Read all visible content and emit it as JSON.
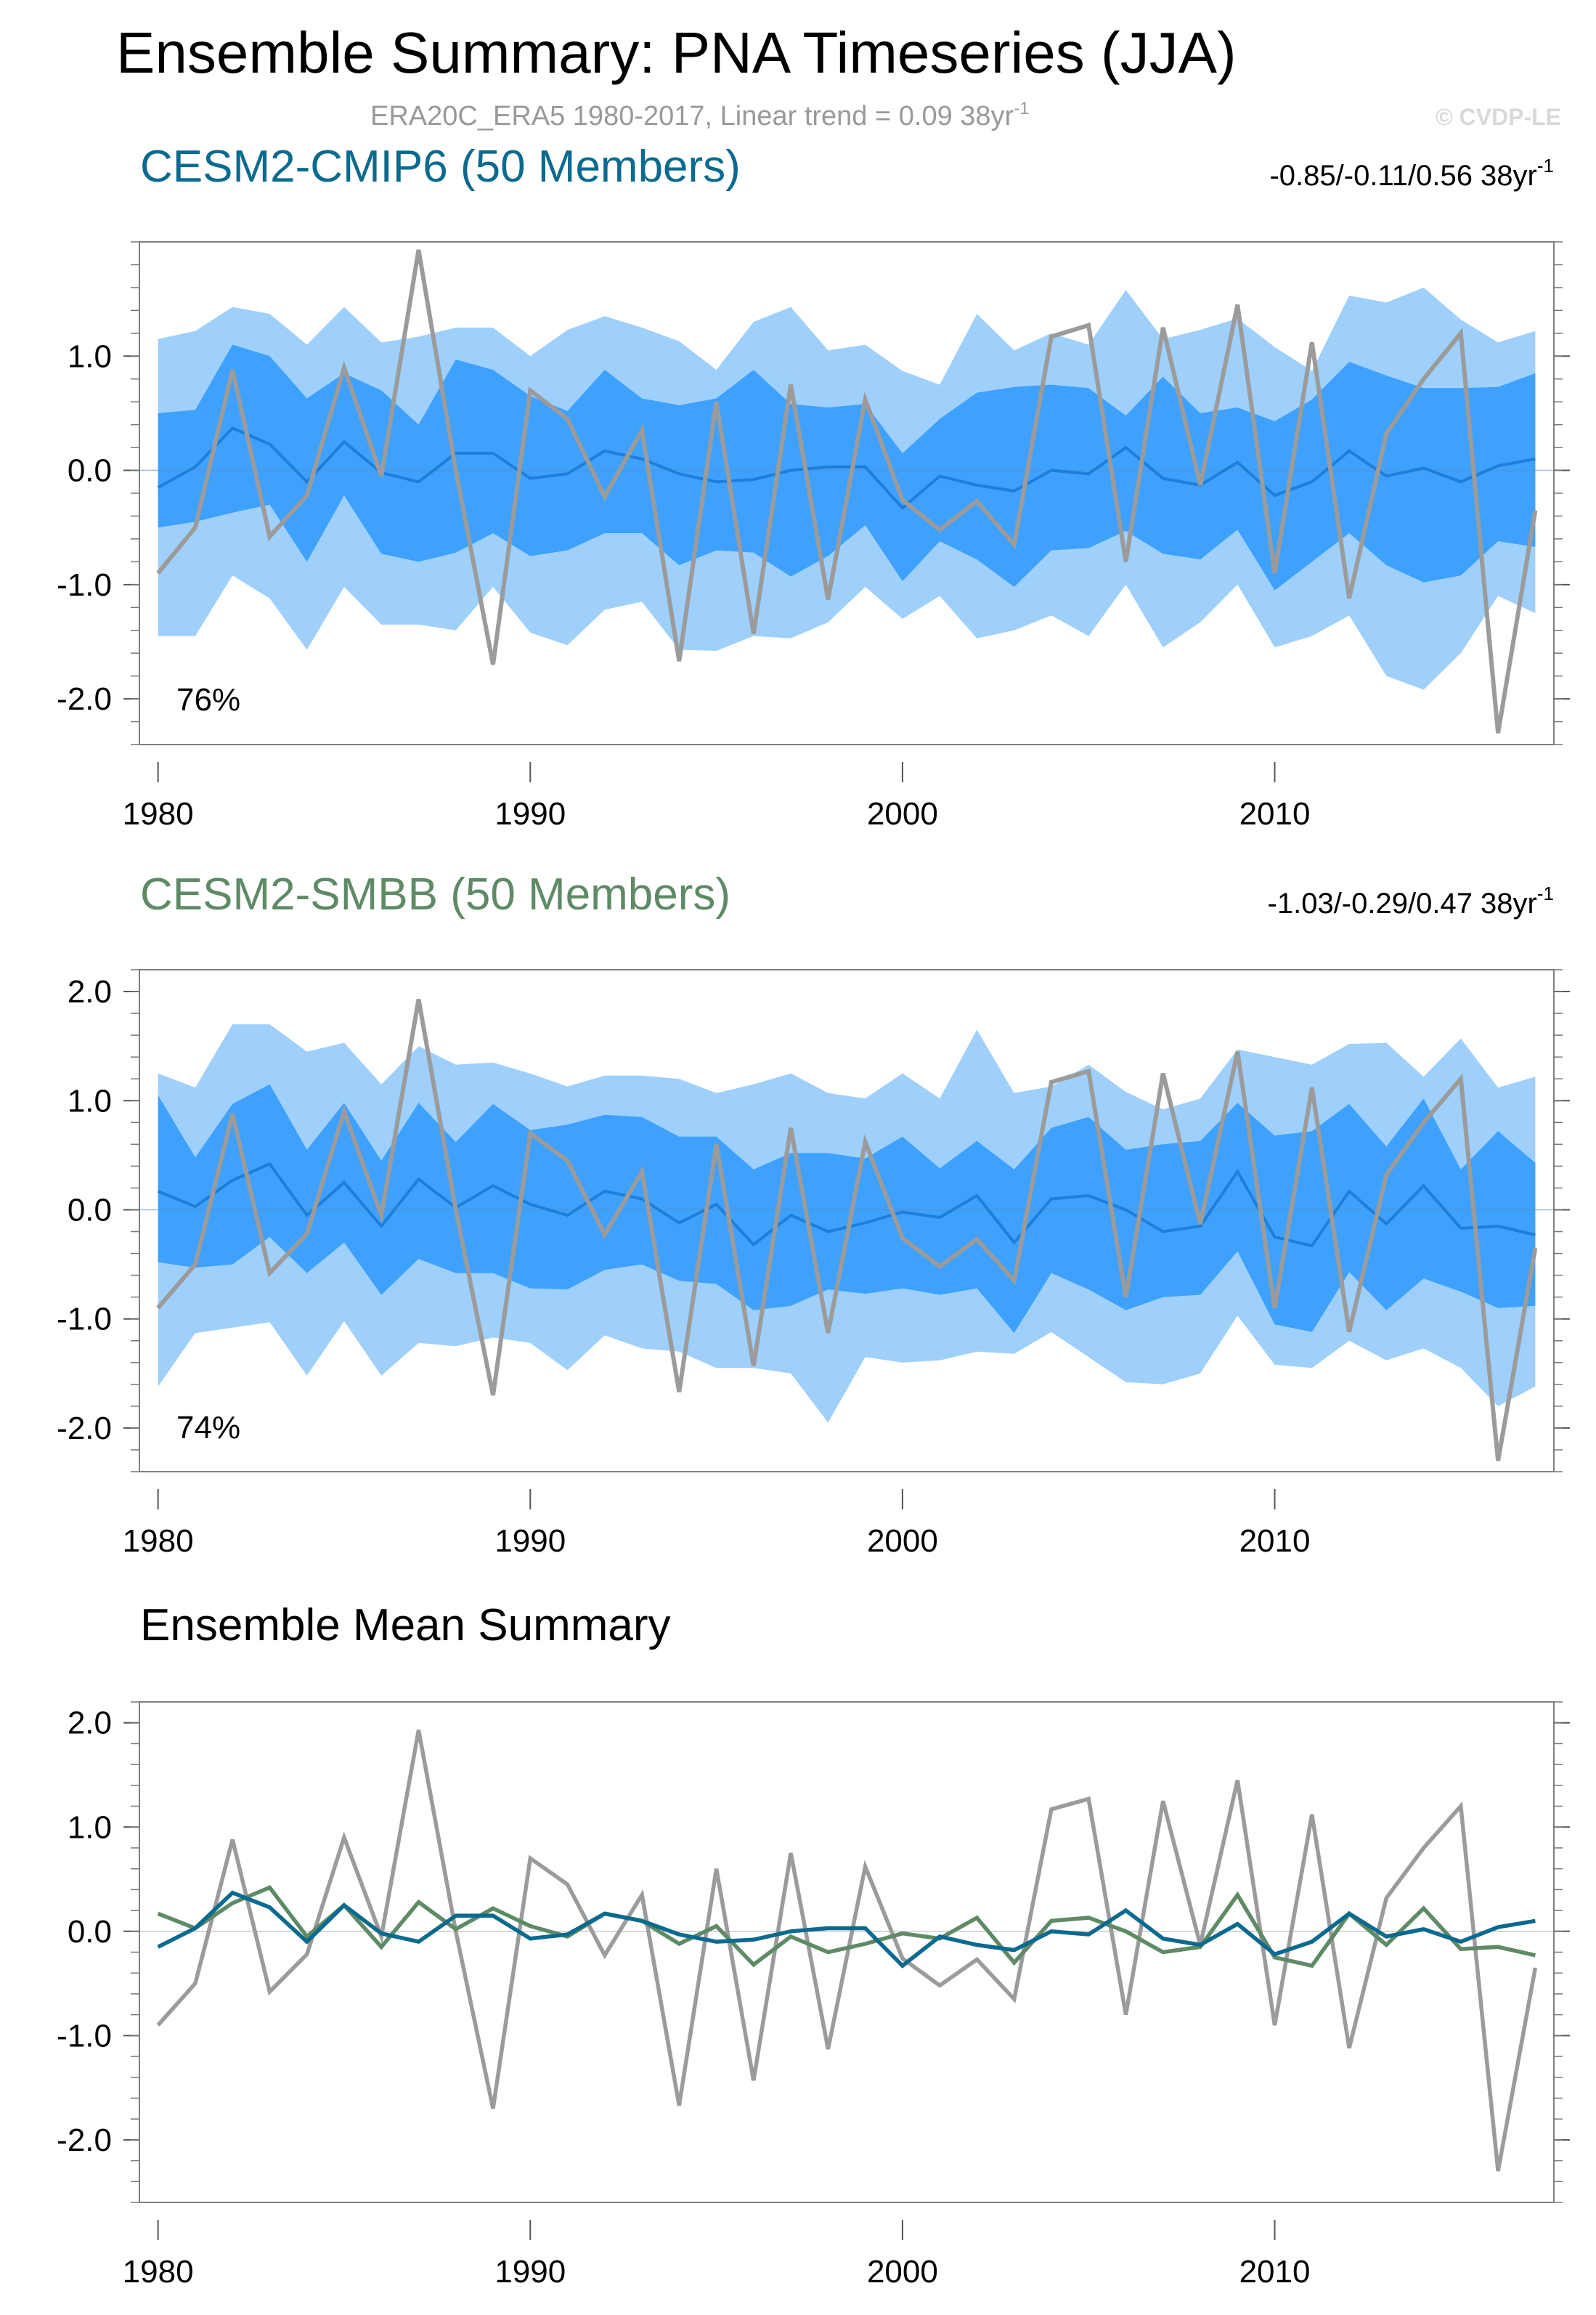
{
  "page": {
    "title": "Ensemble Summary: PNA Timeseries (JJA)",
    "subtitle": "ERA20C_ERA5 1980-2017, Linear trend = 0.09 38yr",
    "subtitle_sup": "-1",
    "copyright": "© CVDP-LE"
  },
  "colors": {
    "obs": "#9b9b9b",
    "outer_band": "#9fd0fb",
    "inner_band": "#3da1fd",
    "cesm2_cmip6_line": "#0b6a8e",
    "cesm2_cmip6_band_mean": "#1d7fd8",
    "cesm2_smbb_line": "#5e8a66",
    "zero_line": "#c8c8c8",
    "frame": "#808080"
  },
  "chart_data": [
    {
      "type": "line",
      "name": "CESM2-CMIP6 (50 Members)",
      "title": "CESM2-CMIP6 (50 Members)",
      "trend_text": "-0.85/-0.11/0.56 38yr",
      "trend_sup": "-1",
      "percent_label": "76%",
      "title_color": "#0b6a8e",
      "x": [
        1980,
        1981,
        1982,
        1983,
        1984,
        1985,
        1986,
        1987,
        1988,
        1989,
        1990,
        1991,
        1992,
        1993,
        1994,
        1995,
        1996,
        1997,
        1998,
        1999,
        2000,
        2001,
        2002,
        2003,
        2004,
        2005,
        2006,
        2007,
        2008,
        2009,
        2010,
        2011,
        2012,
        2013,
        2014,
        2015,
        2016,
        2017
      ],
      "ylim": [
        -2.4,
        2.0
      ],
      "yticks": [
        -2.0,
        -1.0,
        0.0,
        1.0
      ],
      "yticklabels": [
        "-2.0",
        "-1.0",
        "0.0",
        "1.0"
      ],
      "xticks": [
        1980,
        1990,
        2000,
        2010
      ],
      "xticklabels": [
        "1980",
        "1990",
        "2000",
        "2010"
      ],
      "obs": [
        -0.9,
        -0.5,
        0.88,
        -0.58,
        -0.22,
        0.9,
        -0.05,
        1.93,
        0.0,
        -1.7,
        0.7,
        0.45,
        -0.23,
        0.35,
        -1.67,
        0.6,
        -1.43,
        0.75,
        -1.13,
        0.62,
        -0.26,
        -0.52,
        -0.27,
        -0.65,
        1.17,
        1.27,
        -0.8,
        1.25,
        -0.13,
        1.45,
        -0.9,
        1.12,
        -1.12,
        0.32,
        0.8,
        1.2,
        -2.3,
        -0.35
      ],
      "ens_mean": [
        -0.15,
        0.03,
        0.37,
        0.23,
        -0.1,
        0.25,
        -0.02,
        -0.1,
        0.15,
        0.15,
        -0.07,
        -0.03,
        0.17,
        0.1,
        -0.03,
        -0.1,
        -0.08,
        0.0,
        0.03,
        0.03,
        -0.33,
        -0.05,
        -0.13,
        -0.18,
        0.0,
        -0.03,
        0.2,
        -0.07,
        -0.13,
        0.07,
        -0.22,
        -0.1,
        0.17,
        -0.05,
        0.02,
        -0.1,
        0.04,
        0.1
      ],
      "p10": [
        -1.45,
        -1.45,
        -0.92,
        -1.12,
        -1.57,
        -1.02,
        -1.35,
        -1.35,
        -1.4,
        -1.02,
        -1.42,
        -1.53,
        -1.22,
        -1.15,
        -1.57,
        -1.58,
        -1.45,
        -1.47,
        -1.33,
        -1.02,
        -1.3,
        -1.1,
        -1.47,
        -1.4,
        -1.27,
        -1.45,
        -1.0,
        -1.55,
        -1.33,
        -1.0,
        -1.55,
        -1.45,
        -1.27,
        -1.8,
        -1.92,
        -1.6,
        -1.1,
        -1.25
      ],
      "p25": [
        -0.5,
        -0.45,
        -0.37,
        -0.3,
        -0.8,
        -0.22,
        -0.73,
        -0.8,
        -0.72,
        -0.55,
        -0.75,
        -0.7,
        -0.55,
        -0.55,
        -0.83,
        -0.7,
        -0.72,
        -0.93,
        -0.75,
        -0.48,
        -0.97,
        -0.62,
        -0.78,
        -1.02,
        -0.7,
        -0.68,
        -0.53,
        -0.73,
        -0.78,
        -0.52,
        -1.05,
        -0.8,
        -0.55,
        -0.83,
        -0.98,
        -0.92,
        -0.62,
        -0.67
      ],
      "p75": [
        0.5,
        0.53,
        1.1,
        1.0,
        0.63,
        0.85,
        0.7,
        0.4,
        0.97,
        0.88,
        0.65,
        0.52,
        0.88,
        0.63,
        0.57,
        0.63,
        0.88,
        0.58,
        0.55,
        0.58,
        0.15,
        0.45,
        0.68,
        0.73,
        0.75,
        0.72,
        0.48,
        0.82,
        0.5,
        0.55,
        0.43,
        0.62,
        0.95,
        0.83,
        0.72,
        0.72,
        0.73,
        0.85
      ],
      "p90": [
        1.15,
        1.22,
        1.43,
        1.37,
        1.1,
        1.43,
        1.12,
        1.17,
        1.25,
        1.25,
        1.0,
        1.23,
        1.35,
        1.25,
        1.13,
        0.88,
        1.3,
        1.43,
        1.05,
        1.1,
        0.87,
        0.75,
        1.37,
        1.05,
        1.2,
        1.1,
        1.58,
        1.15,
        1.23,
        1.33,
        1.08,
        0.87,
        1.53,
        1.47,
        1.6,
        1.32,
        1.12,
        1.22
      ]
    },
    {
      "type": "line",
      "name": "CESM2-SMBB (50 Members)",
      "title": "CESM2-SMBB (50 Members)",
      "trend_text": "-1.03/-0.29/0.47 38yr",
      "trend_sup": "-1",
      "percent_label": "74%",
      "title_color": "#5e8a66",
      "x": [
        1980,
        1981,
        1982,
        1983,
        1984,
        1985,
        1986,
        1987,
        1988,
        1989,
        1990,
        1991,
        1992,
        1993,
        1994,
        1995,
        1996,
        1997,
        1998,
        1999,
        2000,
        2001,
        2002,
        2003,
        2004,
        2005,
        2006,
        2007,
        2008,
        2009,
        2010,
        2011,
        2012,
        2013,
        2014,
        2015,
        2016,
        2017
      ],
      "ylim": [
        -2.4,
        2.2
      ],
      "yticks": [
        -2.0,
        -1.0,
        0.0,
        1.0,
        2.0
      ],
      "yticklabels": [
        "-2.0",
        "-1.0",
        "0.0",
        "1.0",
        "2.0"
      ],
      "xticks": [
        1980,
        1990,
        2000,
        2010
      ],
      "xticklabels": [
        "1980",
        "1990",
        "2000",
        "2010"
      ],
      "obs": [
        -0.9,
        -0.5,
        0.88,
        -0.58,
        -0.22,
        0.9,
        -0.05,
        1.93,
        0.0,
        -1.7,
        0.7,
        0.45,
        -0.23,
        0.35,
        -1.67,
        0.6,
        -1.43,
        0.75,
        -1.13,
        0.62,
        -0.26,
        -0.52,
        -0.27,
        -0.65,
        1.17,
        1.27,
        -0.8,
        1.25,
        -0.13,
        1.45,
        -0.9,
        1.12,
        -1.12,
        0.32,
        0.8,
        1.2,
        -2.3,
        -0.35
      ],
      "ens_mean": [
        0.17,
        0.03,
        0.27,
        0.42,
        -0.05,
        0.25,
        -0.15,
        0.28,
        0.02,
        0.22,
        0.05,
        -0.05,
        0.17,
        0.1,
        -0.12,
        0.05,
        -0.32,
        -0.05,
        -0.2,
        -0.12,
        -0.02,
        -0.07,
        0.13,
        -0.3,
        0.1,
        0.13,
        0.0,
        -0.2,
        -0.15,
        0.35,
        -0.25,
        -0.33,
        0.17,
        -0.13,
        0.22,
        -0.17,
        -0.15,
        -0.23
      ],
      "p10": [
        -1.62,
        -1.13,
        -1.08,
        -1.03,
        -1.52,
        -1.02,
        -1.52,
        -1.22,
        -1.25,
        -1.17,
        -1.22,
        -1.47,
        -1.15,
        -1.27,
        -1.3,
        -1.45,
        -1.45,
        -1.5,
        -1.95,
        -1.35,
        -1.4,
        -1.38,
        -1.3,
        -1.32,
        -1.12,
        -1.35,
        -1.58,
        -1.6,
        -1.5,
        -0.97,
        -1.42,
        -1.45,
        -1.2,
        -1.38,
        -1.27,
        -1.45,
        -1.8,
        -1.62
      ],
      "p25": [
        -0.48,
        -0.53,
        -0.5,
        -0.25,
        -0.58,
        -0.3,
        -0.78,
        -0.45,
        -0.58,
        -0.58,
        -0.72,
        -0.73,
        -0.55,
        -0.5,
        -0.65,
        -0.68,
        -0.92,
        -0.88,
        -0.73,
        -0.77,
        -0.72,
        -0.78,
        -0.72,
        -1.13,
        -0.58,
        -0.73,
        -0.92,
        -0.8,
        -0.78,
        -0.38,
        -1.05,
        -1.12,
        -0.57,
        -0.92,
        -0.63,
        -0.75,
        -0.9,
        -0.88
      ],
      "p75": [
        1.05,
        0.48,
        0.97,
        1.15,
        0.55,
        0.98,
        0.45,
        0.98,
        0.62,
        0.97,
        0.73,
        0.78,
        0.87,
        0.85,
        0.67,
        0.67,
        0.37,
        0.52,
        0.52,
        0.47,
        0.67,
        0.38,
        0.63,
        0.37,
        0.75,
        0.85,
        0.55,
        0.6,
        0.63,
        0.98,
        0.68,
        0.72,
        0.97,
        0.58,
        1.02,
        0.37,
        0.72,
        0.43
      ],
      "p90": [
        1.25,
        1.12,
        1.7,
        1.7,
        1.45,
        1.53,
        1.15,
        1.5,
        1.33,
        1.35,
        1.25,
        1.13,
        1.23,
        1.23,
        1.2,
        1.07,
        1.15,
        1.25,
        1.07,
        1.02,
        1.25,
        1.02,
        1.65,
        1.07,
        1.13,
        1.33,
        1.08,
        0.92,
        1.02,
        1.47,
        1.4,
        1.33,
        1.52,
        1.53,
        1.22,
        1.57,
        1.12,
        1.22
      ]
    },
    {
      "type": "line",
      "name": "Ensemble Mean Summary",
      "title": "Ensemble Mean Summary",
      "x": [
        1980,
        1981,
        1982,
        1983,
        1984,
        1985,
        1986,
        1987,
        1988,
        1989,
        1990,
        1991,
        1992,
        1993,
        1994,
        1995,
        1996,
        1997,
        1998,
        1999,
        2000,
        2001,
        2002,
        2003,
        2004,
        2005,
        2006,
        2007,
        2008,
        2009,
        2010,
        2011,
        2012,
        2013,
        2014,
        2015,
        2016,
        2017
      ],
      "ylim": [
        -2.6,
        2.2
      ],
      "yticks": [
        -2.0,
        -1.0,
        0.0,
        1.0,
        2.0
      ],
      "yticklabels": [
        "-2.0",
        "-1.0",
        "0.0",
        "1.0",
        "2.0"
      ],
      "xticks": [
        1980,
        1990,
        2000,
        2010
      ],
      "xticklabels": [
        "1980",
        "1990",
        "2000",
        "2010"
      ],
      "series": [
        {
          "name": "ERA20C_ERA5",
          "color": "#9b9b9b",
          "values": [
            -0.9,
            -0.5,
            0.88,
            -0.58,
            -0.22,
            0.9,
            -0.05,
            1.93,
            0.0,
            -1.7,
            0.7,
            0.45,
            -0.23,
            0.35,
            -1.67,
            0.6,
            -1.43,
            0.75,
            -1.13,
            0.62,
            -0.26,
            -0.52,
            -0.27,
            -0.65,
            1.17,
            1.27,
            -0.8,
            1.25,
            -0.13,
            1.45,
            -0.9,
            1.12,
            -1.12,
            0.32,
            0.8,
            1.2,
            -2.3,
            -0.35
          ]
        },
        {
          "name": "CESM2-SMBB",
          "color": "#5e8a66",
          "values": [
            0.17,
            0.03,
            0.27,
            0.42,
            -0.05,
            0.25,
            -0.15,
            0.28,
            0.02,
            0.22,
            0.05,
            -0.05,
            0.17,
            0.1,
            -0.12,
            0.05,
            -0.32,
            -0.05,
            -0.2,
            -0.12,
            -0.02,
            -0.07,
            0.13,
            -0.3,
            0.1,
            0.13,
            0.0,
            -0.2,
            -0.15,
            0.35,
            -0.25,
            -0.33,
            0.17,
            -0.13,
            0.22,
            -0.17,
            -0.15,
            -0.23
          ]
        },
        {
          "name": "CESM2-CMIP6",
          "color": "#0b6a8e",
          "values": [
            -0.15,
            0.03,
            0.37,
            0.23,
            -0.1,
            0.25,
            -0.02,
            -0.1,
            0.15,
            0.15,
            -0.07,
            -0.03,
            0.17,
            0.1,
            -0.03,
            -0.1,
            -0.08,
            0.0,
            0.03,
            0.03,
            -0.33,
            -0.05,
            -0.13,
            -0.18,
            0.0,
            -0.03,
            0.2,
            -0.07,
            -0.13,
            0.07,
            -0.22,
            -0.1,
            0.17,
            -0.05,
            0.02,
            -0.1,
            0.04,
            0.1
          ]
        }
      ]
    }
  ]
}
